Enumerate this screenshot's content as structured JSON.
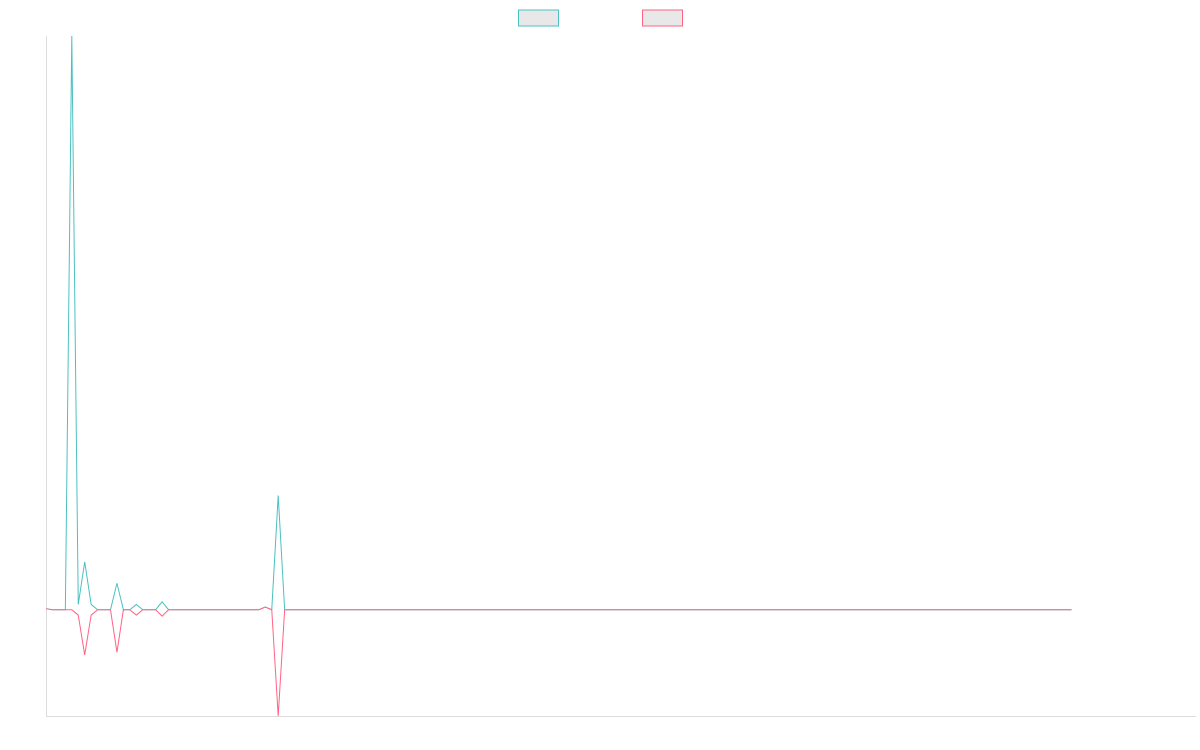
{
  "chart_data": {
    "type": "line",
    "title": "",
    "xlabel": "",
    "ylabel": "",
    "grid": false,
    "legend": {
      "placement": "top-center",
      "entries": [
        {
          "label": "",
          "color": "#4bc0c0",
          "fill": "#e8e8e8"
        },
        {
          "label": "",
          "color": "#ff6384",
          "fill": "#e8e8e8"
        }
      ]
    },
    "ylim": [
      -20,
      108
    ],
    "x_count": 160,
    "series": [
      {
        "color": "#4bc0c0",
        "points": [
          [
            0,
            0.2
          ],
          [
            1,
            0
          ],
          [
            2,
            0
          ],
          [
            3,
            0
          ],
          [
            4,
            108
          ],
          [
            5,
            1
          ],
          [
            6,
            9
          ],
          [
            7,
            1
          ],
          [
            8,
            0
          ],
          [
            9,
            0
          ],
          [
            10,
            0
          ],
          [
            11,
            5
          ],
          [
            12,
            0
          ],
          [
            13,
            0
          ],
          [
            14,
            1
          ],
          [
            15,
            0
          ],
          [
            16,
            0
          ],
          [
            17,
            0
          ],
          [
            18,
            1.5
          ],
          [
            19,
            0
          ],
          [
            33,
            0
          ],
          [
            34,
            0.5
          ],
          [
            35,
            0
          ],
          [
            36,
            21.5
          ],
          [
            37,
            0
          ],
          [
            38,
            0
          ],
          [
            159,
            0
          ]
        ]
      },
      {
        "color": "#ff6384",
        "points": [
          [
            0,
            0.2
          ],
          [
            1,
            0
          ],
          [
            2,
            0
          ],
          [
            3,
            0
          ],
          [
            4,
            0
          ],
          [
            5,
            -1
          ],
          [
            6,
            -8.5
          ],
          [
            7,
            -1
          ],
          [
            8,
            0
          ],
          [
            9,
            0
          ],
          [
            10,
            0
          ],
          [
            11,
            -8
          ],
          [
            12,
            0
          ],
          [
            13,
            0
          ],
          [
            14,
            -1
          ],
          [
            15,
            0
          ],
          [
            16,
            0
          ],
          [
            17,
            0
          ],
          [
            18,
            -1.2
          ],
          [
            19,
            0
          ],
          [
            33,
            0
          ],
          [
            34,
            0.5
          ],
          [
            35,
            0
          ],
          [
            36,
            -20
          ],
          [
            37,
            0
          ],
          [
            38,
            0
          ],
          [
            159,
            0
          ]
        ]
      }
    ]
  }
}
